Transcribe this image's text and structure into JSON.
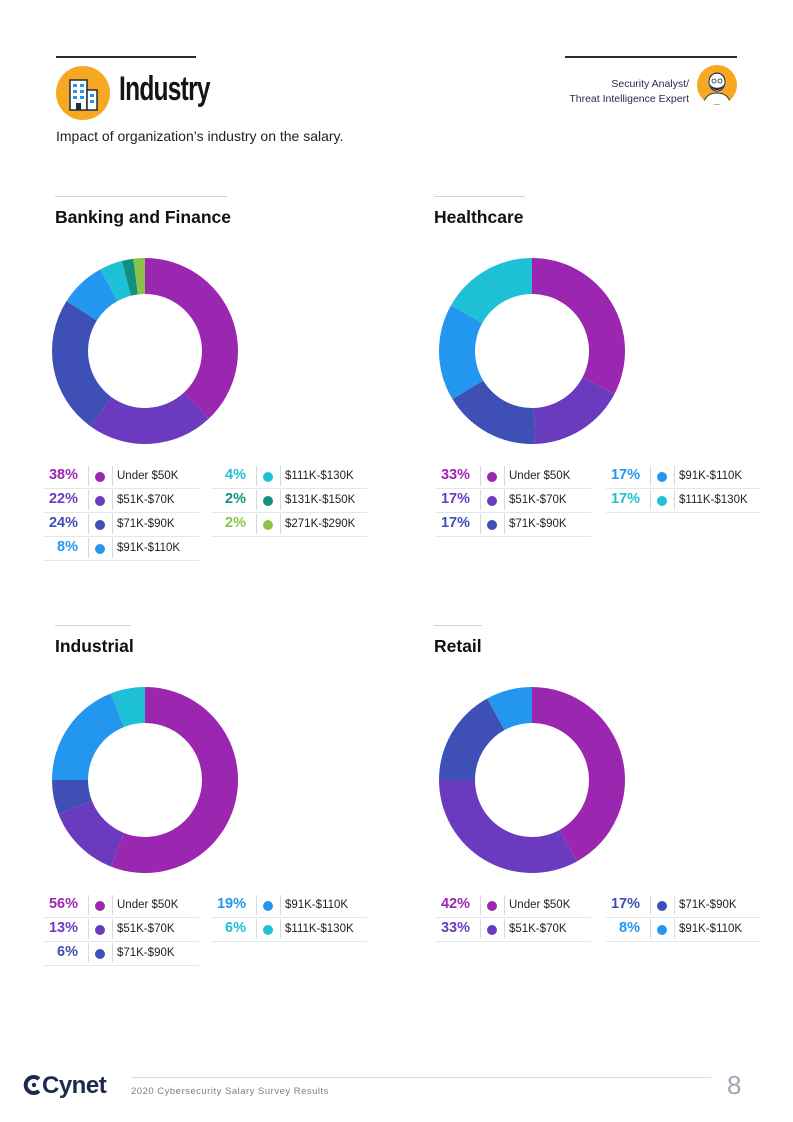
{
  "header": {
    "title": "Industry",
    "subtitle": "Impact of organization’s industry on the salary.",
    "role_line1": "Security Analyst/",
    "role_line2": "Threat Intelligence Expert"
  },
  "footer": {
    "logo": "Cynet",
    "text": "2020 Cybersecurity Salary Survey Results",
    "page_number": "8"
  },
  "colors": {
    "under_50k": "#9b27b0",
    "51k_70k": "#6a3bbf",
    "71k_90k": "#3e4fb5",
    "91k_110k": "#2396ef",
    "111k_130k": "#1ec0d6",
    "131k_150k": "#10907d",
    "271k_290k": "#8bc34a"
  },
  "chart_data": [
    {
      "type": "pie",
      "title": "Banking and Finance",
      "slices": [
        {
          "label": "Under $50K",
          "value": 38,
          "display": "38%",
          "color": "#9b27b0"
        },
        {
          "label": "$51K-$70K",
          "value": 22,
          "display": "22%",
          "color": "#6a3bbf"
        },
        {
          "label": "$71K-$90K",
          "value": 24,
          "display": "24%",
          "color": "#3e4fb5"
        },
        {
          "label": "$91K-$110K",
          "value": 8,
          "display": "8%",
          "color": "#2396ef"
        },
        {
          "label": "$111K-$130K",
          "value": 4,
          "display": "4%",
          "color": "#1ec0d6"
        },
        {
          "label": "$131K-$150K",
          "value": 2,
          "display": "2%",
          "color": "#10907d"
        },
        {
          "label": "$271K-$290K",
          "value": 2,
          "display": "2%",
          "color": "#8bc34a"
        }
      ]
    },
    {
      "type": "pie",
      "title": "Healthcare",
      "slices": [
        {
          "label": "Under $50K",
          "value": 33,
          "display": "33%",
          "color": "#9b27b0"
        },
        {
          "label": "$51K-$70K",
          "value": 17,
          "display": "17%",
          "color": "#6a3bbf"
        },
        {
          "label": "$71K-$90K",
          "value": 17,
          "display": "17%",
          "color": "#3e4fb5"
        },
        {
          "label": "$91K-$110K",
          "value": 17,
          "display": "17%",
          "color": "#2396ef"
        },
        {
          "label": "$111K-$130K",
          "value": 17,
          "display": "17%",
          "color": "#1ec0d6"
        }
      ]
    },
    {
      "type": "pie",
      "title": "Industrial",
      "slices": [
        {
          "label": "Under $50K",
          "value": 56,
          "display": "56%",
          "color": "#9b27b0"
        },
        {
          "label": "$51K-$70K",
          "value": 13,
          "display": "13%",
          "color": "#6a3bbf"
        },
        {
          "label": "$71K-$90K",
          "value": 6,
          "display": "6%",
          "color": "#3e4fb5"
        },
        {
          "label": "$91K-$110K",
          "value": 19,
          "display": "19%",
          "color": "#2396ef"
        },
        {
          "label": "$111K-$130K",
          "value": 6,
          "display": "6%",
          "color": "#1ec0d6"
        }
      ]
    },
    {
      "type": "pie",
      "title": "Retail",
      "slices": [
        {
          "label": "Under $50K",
          "value": 42,
          "display": "42%",
          "color": "#9b27b0"
        },
        {
          "label": "$51K-$70K",
          "value": 33,
          "display": "33%",
          "color": "#6a3bbf"
        },
        {
          "label": "$71K-$90K",
          "value": 17,
          "display": "17%",
          "color": "#3e4fb5"
        },
        {
          "label": "$91K-$110K",
          "value": 8,
          "display": "8%",
          "color": "#2396ef"
        }
      ]
    }
  ]
}
